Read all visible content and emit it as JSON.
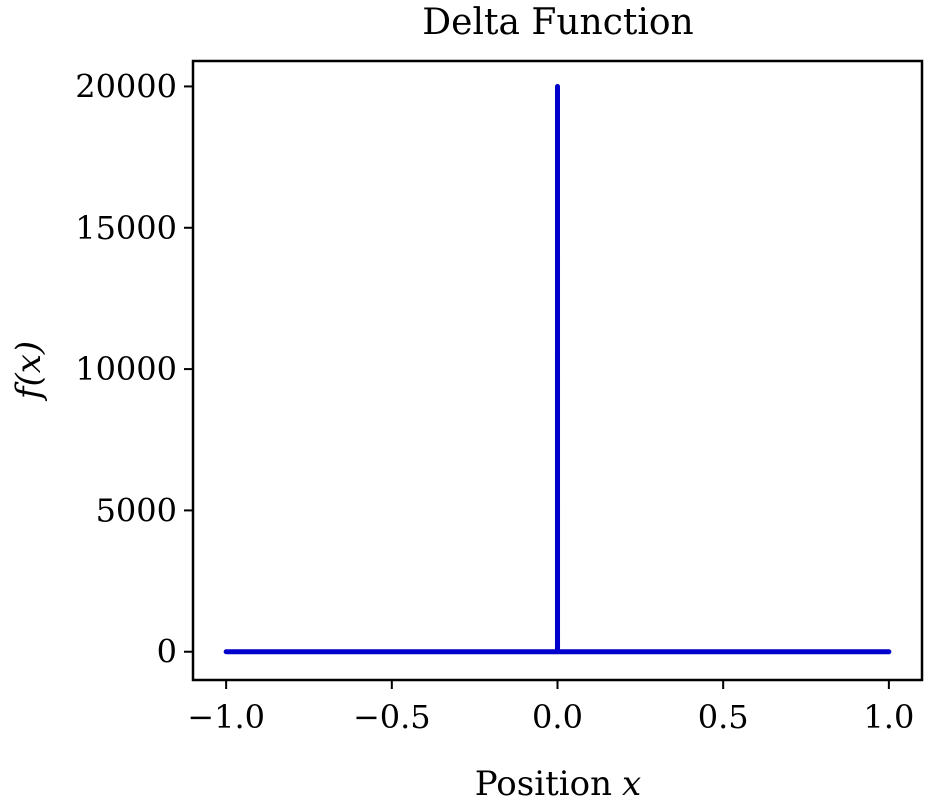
{
  "chart_data": {
    "type": "line",
    "title": "Delta Function",
    "xlabel": "Position",
    "xlabel_var": "x",
    "ylabel": "f(x)",
    "xlim": [
      -1.1,
      1.1
    ],
    "ylim": [
      -1000,
      20900
    ],
    "xticks": [
      -1.0,
      -0.5,
      0.0,
      0.5,
      1.0
    ],
    "xtick_labels": [
      "−1.0",
      "−0.5",
      "0.0",
      "0.5",
      "1.0"
    ],
    "yticks": [
      0,
      5000,
      10000,
      15000,
      20000
    ],
    "ytick_labels": [
      "0",
      "5000",
      "10000",
      "15000",
      "20000"
    ],
    "grid": false,
    "series": [
      {
        "color": "#0000cc",
        "x": [
          -1.0,
          -0.0001,
          0.0,
          0.0001,
          1.0
        ],
        "y": [
          0,
          0,
          20000,
          0,
          0
        ]
      }
    ]
  }
}
